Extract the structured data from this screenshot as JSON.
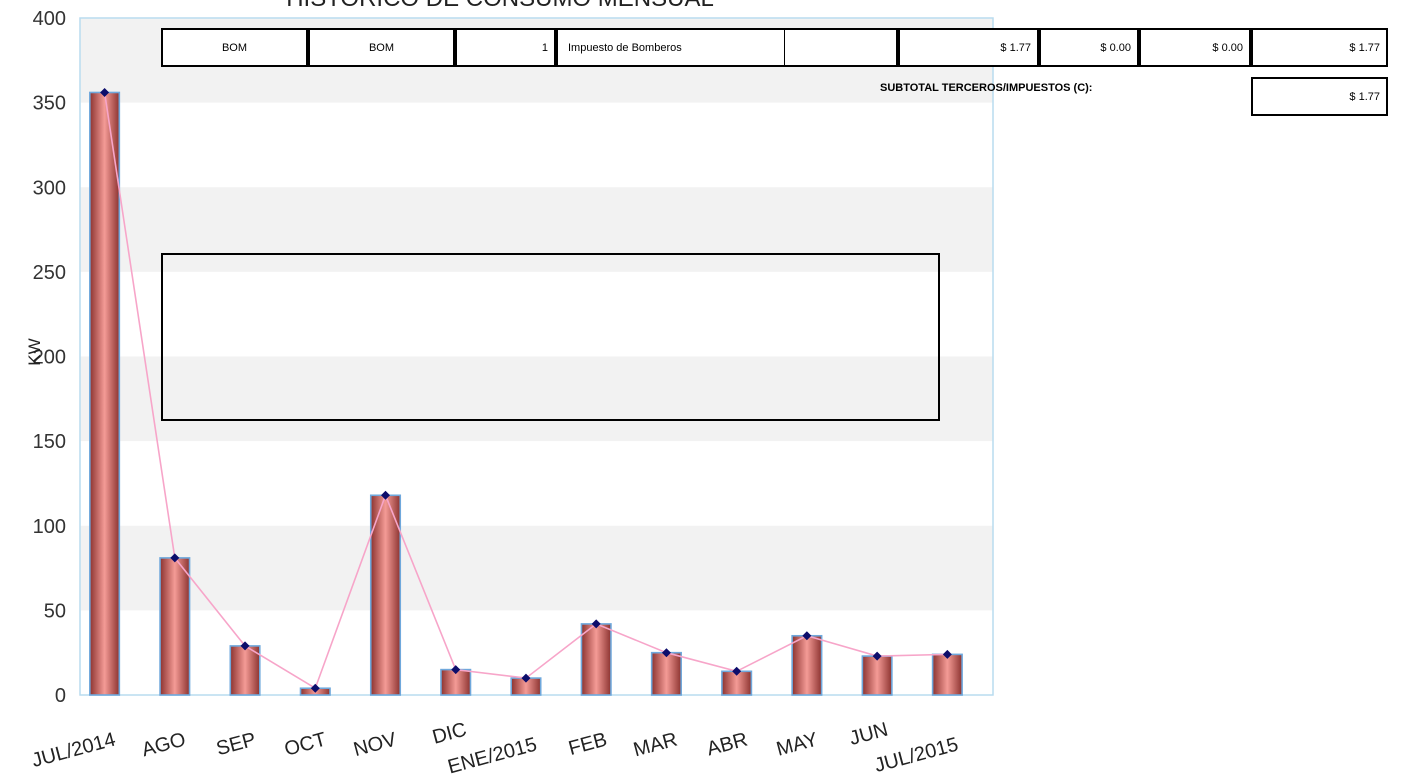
{
  "chart_data": {
    "type": "bar",
    "title": "HISTORICO DE CONSUMO MENSUAL",
    "ylabel": "KW",
    "ylim": [
      0,
      400
    ],
    "yticks": [
      0,
      50,
      100,
      150,
      200,
      250,
      300,
      350,
      400
    ],
    "categories": [
      "JUL/2014",
      "AGO",
      "SEP",
      "OCT",
      "NOV",
      "DIC",
      "ENE/2015",
      "FEB",
      "MAR",
      "ABR",
      "MAY",
      "JUN",
      "JUL/2015"
    ],
    "series": [
      {
        "values": [
          356,
          81,
          29,
          4,
          118,
          15,
          10,
          42,
          25,
          14,
          35,
          23,
          24
        ]
      }
    ],
    "grid": "alternating horizontal bands",
    "colors": {
      "bar": "#e88580",
      "bar_dark": "#8c3330",
      "bar_edge": "#6fa8dc",
      "line": "#f7a5c9",
      "marker": "#0d0d6b",
      "band": "#f2f2f2",
      "frame": "#b9dcef"
    }
  },
  "table": {
    "row": {
      "code1": "BOM",
      "code2": "BOM",
      "qty": "1",
      "description": "Impuesto de Bomberos",
      "val1": "$ 1.77",
      "val2": "$ 0.00",
      "val3": "$ 0.00",
      "total": "$ 1.77"
    },
    "subtotal_label": "SUBTOTAL TERCEROS/IMPUESTOS (C):",
    "subtotal_value": "$ 1.77"
  }
}
